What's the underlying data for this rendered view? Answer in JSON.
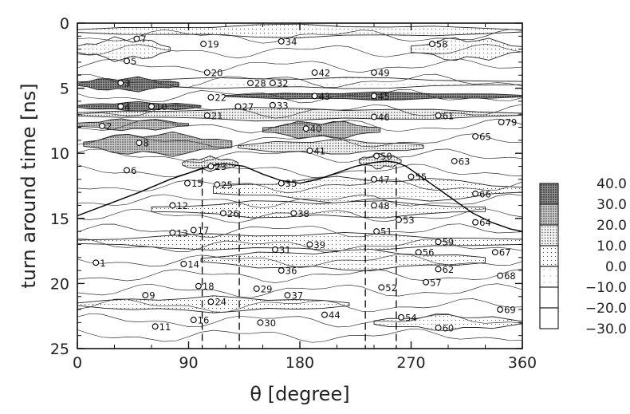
{
  "chart_data": {
    "type": "heatmap",
    "title": "",
    "xlabel": "θ [degree]",
    "ylabel": "turn around time [ns]",
    "xlim": [
      0,
      360
    ],
    "ylim": [
      0,
      25
    ],
    "y_inverted": true,
    "x_ticks": [
      0,
      90,
      180,
      270,
      360
    ],
    "x_tick_labels": [
      "0",
      "90",
      "180",
      "270",
      "360"
    ],
    "y_ticks": [
      0,
      5,
      10,
      15,
      20,
      25
    ],
    "y_tick_labels": [
      "0",
      "5",
      "10",
      "15",
      "20",
      "25"
    ],
    "colorbar": {
      "levels": [
        40.0,
        30.0,
        20.0,
        10.0,
        0.0,
        -10.0,
        -20.0,
        -30.0
      ],
      "labels": [
        "40.0",
        "30.0",
        "20.0",
        "10.0",
        "0.0",
        "−10.0",
        "−20.0",
        "−30.0"
      ],
      "fills": [
        "dense",
        "medium-dense",
        "medium",
        "light",
        "very-light",
        "white",
        "white"
      ]
    },
    "contour_bands": [
      {
        "y": 0.6,
        "x0": 0,
        "x1": 360,
        "half": 0.5,
        "level": "light"
      },
      {
        "y": 2.0,
        "x0": 0,
        "x1": 75,
        "half": 0.9,
        "level": "light"
      },
      {
        "y": 2.0,
        "x0": 270,
        "x1": 360,
        "half": 0.9,
        "level": "light"
      },
      {
        "y": 4.6,
        "x0": 0,
        "x1": 360,
        "half": 0.45,
        "level": "very-light"
      },
      {
        "y": 4.7,
        "x0": 0,
        "x1": 82,
        "half": 0.55,
        "level": "dense"
      },
      {
        "y": 5.6,
        "x0": 120,
        "x1": 360,
        "half": 0.3,
        "level": "dense"
      },
      {
        "y": 6.4,
        "x0": 0,
        "x1": 100,
        "half": 0.35,
        "level": "dense"
      },
      {
        "y": 7.0,
        "x0": 0,
        "x1": 360,
        "half": 0.5,
        "level": "medium"
      },
      {
        "y": 7.8,
        "x0": 0,
        "x1": 90,
        "half": 0.45,
        "level": "medium-dense"
      },
      {
        "y": 8.2,
        "x0": 150,
        "x1": 245,
        "half": 0.7,
        "level": "medium-dense"
      },
      {
        "y": 9.3,
        "x0": 5,
        "x1": 125,
        "half": 0.9,
        "level": "medium-dense"
      },
      {
        "y": 9.5,
        "x0": 130,
        "x1": 280,
        "half": 0.55,
        "level": "medium"
      },
      {
        "y": 10.8,
        "x0": 85,
        "x1": 130,
        "half": 0.55,
        "level": "medium"
      },
      {
        "y": 10.6,
        "x0": 228,
        "x1": 262,
        "half": 0.6,
        "level": "medium"
      },
      {
        "y": 12.8,
        "x0": 110,
        "x1": 360,
        "half": 1.0,
        "level": "light"
      },
      {
        "y": 14.3,
        "x0": 60,
        "x1": 330,
        "half": 0.7,
        "level": "light"
      },
      {
        "y": 16.8,
        "x0": 0,
        "x1": 360,
        "half": 0.7,
        "level": "light"
      },
      {
        "y": 18.2,
        "x0": 100,
        "x1": 330,
        "half": 0.8,
        "level": "light"
      },
      {
        "y": 21.6,
        "x0": 0,
        "x1": 220,
        "half": 0.6,
        "level": "light"
      },
      {
        "y": 23.0,
        "x0": 240,
        "x1": 360,
        "half": 0.6,
        "level": "light"
      }
    ],
    "curve": {
      "x": [
        0,
        25,
        50,
        75,
        100,
        110,
        120,
        135,
        150,
        165,
        180,
        195,
        210,
        225,
        240,
        250,
        258,
        266,
        275,
        290,
        305,
        320,
        335,
        350,
        360
      ],
      "y": [
        14.8,
        13.9,
        13.0,
        12.0,
        11.2,
        10.9,
        10.8,
        11.0,
        11.6,
        12.1,
        12.3,
        12.0,
        11.5,
        11.0,
        10.7,
        10.6,
        10.7,
        11.0,
        11.6,
        12.6,
        13.6,
        14.6,
        15.3,
        15.8,
        16.0
      ]
    },
    "dashed_lines": [
      {
        "x": 101,
        "y0": 11,
        "y1": 25
      },
      {
        "x": 131,
        "y0": 11,
        "y1": 25
      },
      {
        "x": 233,
        "y0": 11,
        "y1": 25
      },
      {
        "x": 258,
        "y0": 11,
        "y1": 25
      }
    ],
    "markers": [
      {
        "id": "1",
        "theta": 15,
        "t": 18.4
      },
      {
        "id": "2",
        "theta": 20,
        "t": 7.9
      },
      {
        "id": "3",
        "theta": 35,
        "t": 4.6
      },
      {
        "id": "4",
        "theta": 35,
        "t": 6.4
      },
      {
        "id": "5",
        "theta": 40,
        "t": 2.9
      },
      {
        "id": "6",
        "theta": 40,
        "t": 11.3
      },
      {
        "id": "7",
        "theta": 48,
        "t": 1.2
      },
      {
        "id": "8",
        "theta": 50,
        "t": 9.2
      },
      {
        "id": "9",
        "theta": 55,
        "t": 20.9
      },
      {
        "id": "10",
        "theta": 60,
        "t": 6.4
      },
      {
        "id": "11",
        "theta": 63,
        "t": 23.3
      },
      {
        "id": "12",
        "theta": 77,
        "t": 14.0
      },
      {
        "id": "13",
        "theta": 77,
        "t": 16.1
      },
      {
        "id": "14",
        "theta": 86,
        "t": 18.5
      },
      {
        "id": "15",
        "theta": 89,
        "t": 12.3
      },
      {
        "id": "16",
        "theta": 94,
        "t": 22.8
      },
      {
        "id": "17",
        "theta": 94,
        "t": 15.9
      },
      {
        "id": "18",
        "theta": 98,
        "t": 20.2
      },
      {
        "id": "19",
        "theta": 102,
        "t": 1.6
      },
      {
        "id": "20",
        "theta": 105,
        "t": 3.8
      },
      {
        "id": "21",
        "theta": 105,
        "t": 7.1
      },
      {
        "id": "22",
        "theta": 108,
        "t": 5.7
      },
      {
        "id": "23",
        "theta": 108,
        "t": 11.0
      },
      {
        "id": "24",
        "theta": 108,
        "t": 21.4
      },
      {
        "id": "25",
        "theta": 113,
        "t": 12.4
      },
      {
        "id": "26",
        "theta": 118,
        "t": 14.6
      },
      {
        "id": "27",
        "theta": 130,
        "t": 6.4
      },
      {
        "id": "28",
        "theta": 140,
        "t": 4.6
      },
      {
        "id": "29",
        "theta": 145,
        "t": 20.4
      },
      {
        "id": "30",
        "theta": 148,
        "t": 23.0
      },
      {
        "id": "31",
        "theta": 160,
        "t": 17.4
      },
      {
        "id": "32",
        "theta": 158,
        "t": 4.6
      },
      {
        "id": "33",
        "theta": 158,
        "t": 6.3
      },
      {
        "id": "34",
        "theta": 165,
        "t": 1.4
      },
      {
        "id": "35",
        "theta": 165,
        "t": 12.3
      },
      {
        "id": "36",
        "theta": 165,
        "t": 19.0
      },
      {
        "id": "37",
        "theta": 170,
        "t": 20.9
      },
      {
        "id": "38",
        "theta": 175,
        "t": 14.6
      },
      {
        "id": "39",
        "theta": 188,
        "t": 17.0
      },
      {
        "id": "40",
        "theta": 185,
        "t": 8.1
      },
      {
        "id": "41",
        "theta": 188,
        "t": 9.8
      },
      {
        "id": "42",
        "theta": 192,
        "t": 3.8
      },
      {
        "id": "43",
        "theta": 192,
        "t": 5.6
      },
      {
        "id": "44",
        "theta": 200,
        "t": 22.4
      },
      {
        "id": "45",
        "theta": 240,
        "t": 5.6
      },
      {
        "id": "46",
        "theta": 240,
        "t": 7.2
      },
      {
        "id": "47",
        "theta": 240,
        "t": 12.0
      },
      {
        "id": "48",
        "theta": 240,
        "t": 14.0
      },
      {
        "id": "49",
        "theta": 240,
        "t": 3.8
      },
      {
        "id": "50",
        "theta": 242,
        "t": 10.2
      },
      {
        "id": "51",
        "theta": 242,
        "t": 16.0
      },
      {
        "id": "52",
        "theta": 246,
        "t": 20.3
      },
      {
        "id": "53",
        "theta": 260,
        "t": 15.1
      },
      {
        "id": "54",
        "theta": 262,
        "t": 22.6
      },
      {
        "id": "55",
        "theta": 270,
        "t": 11.8
      },
      {
        "id": "56",
        "theta": 276,
        "t": 17.6
      },
      {
        "id": "57",
        "theta": 282,
        "t": 19.9
      },
      {
        "id": "58",
        "theta": 287,
        "t": 1.6
      },
      {
        "id": "59",
        "theta": 292,
        "t": 16.8
      },
      {
        "id": "60",
        "theta": 292,
        "t": 23.4
      },
      {
        "id": "61",
        "theta": 292,
        "t": 7.1
      },
      {
        "id": "62",
        "theta": 292,
        "t": 18.9
      },
      {
        "id": "63",
        "theta": 305,
        "t": 10.6
      },
      {
        "id": "64",
        "theta": 322,
        "t": 15.3
      },
      {
        "id": "65",
        "theta": 322,
        "t": 8.7
      },
      {
        "id": "66",
        "theta": 322,
        "t": 13.1
      },
      {
        "id": "67",
        "theta": 338,
        "t": 17.6
      },
      {
        "id": "68",
        "theta": 342,
        "t": 19.4
      },
      {
        "id": "69",
        "theta": 342,
        "t": 22.0
      },
      {
        "id": "79",
        "theta": 343,
        "t": 7.6
      }
    ]
  }
}
